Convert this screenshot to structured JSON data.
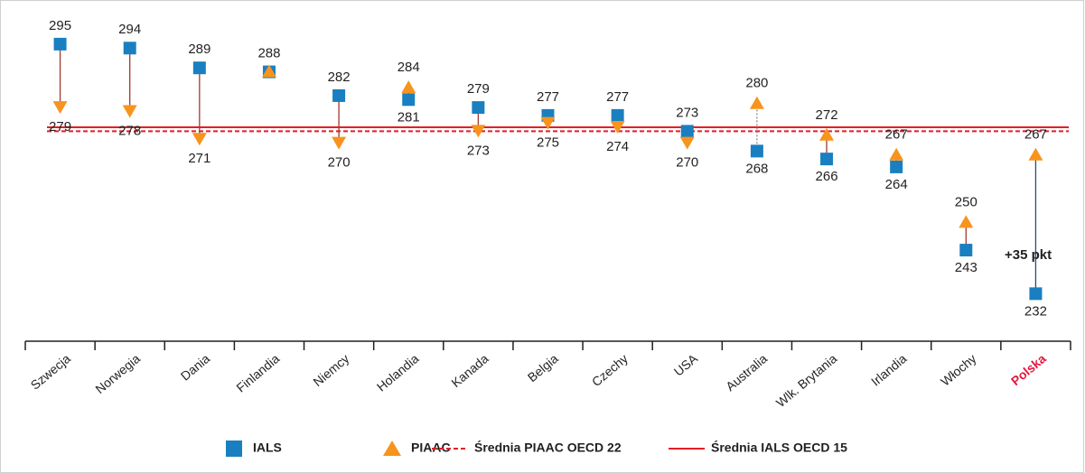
{
  "chart_data": {
    "type": "dumbbell",
    "categories": [
      "Szwecja",
      "Norwegia",
      "Dania",
      "Finlandia",
      "Niemcy",
      "Holandia",
      "Kanada",
      "Belgia",
      "Czechy",
      "USA",
      "Australia",
      "Wlk. Brytania",
      "Irlandia",
      "Włochy",
      "Polska"
    ],
    "category_colors": [
      "#231f20",
      "#231f20",
      "#231f20",
      "#231f20",
      "#231f20",
      "#231f20",
      "#231f20",
      "#231f20",
      "#231f20",
      "#231f20",
      "#231f20",
      "#231f20",
      "#231f20",
      "#231f20",
      "#e5173f"
    ],
    "series": [
      {
        "name": "IALS",
        "color": "#1a7fc1",
        "marker": "square",
        "values": [
          295,
          294,
          289,
          288,
          282,
          281,
          279,
          277,
          277,
          273,
          268,
          266,
          264,
          243,
          232
        ]
      },
      {
        "name": "PIAAC",
        "color": "#f7941d",
        "marker": "triangle",
        "values": [
          279,
          278,
          271,
          288,
          270,
          284,
          273,
          275,
          274,
          270,
          280,
          272,
          267,
          250,
          267
        ]
      }
    ],
    "connector_colors": [
      "#a0392f",
      "#a0392f",
      "#a0392f",
      null,
      "#a0392f",
      "#a0392f",
      "#a0392f",
      "#a0392f",
      "#a0392f",
      "#a0392f",
      "#888888",
      "#a0392f",
      "#a0392f",
      "#a0392f",
      "#1f4e8c"
    ],
    "connector_dashed": [
      false,
      false,
      false,
      false,
      false,
      false,
      false,
      false,
      false,
      false,
      true,
      false,
      false,
      false,
      false
    ],
    "reference_lines": [
      {
        "name": "Średnia PIAAC OECD 22",
        "value": 273,
        "color": "#e31e24",
        "dashed": true
      },
      {
        "name": "Średnia IALS OECD 15",
        "value": 274,
        "color": "#e31e24",
        "dashed": false
      }
    ],
    "annotations": [
      {
        "text": "+35 pkt"
      }
    ],
    "ylim": [
      220,
      305
    ]
  }
}
